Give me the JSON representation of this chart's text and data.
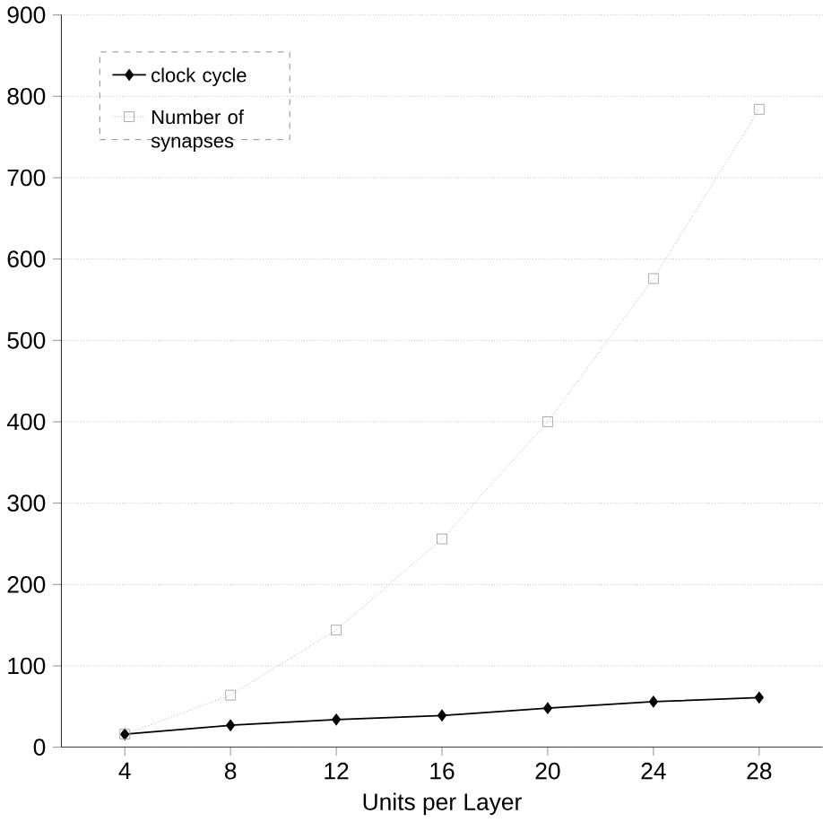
{
  "chart_data": {
    "type": "line",
    "xlabel": "Units per Layer",
    "categories": [
      "4",
      "8",
      "12",
      "16",
      "20",
      "24",
      "28"
    ],
    "series": [
      {
        "name": "clock cycle",
        "color": "#000000",
        "marker": "diamond",
        "line_style": "solid",
        "values": [
          16,
          27,
          34,
          39,
          48,
          56,
          61
        ]
      },
      {
        "name": "Number of synapses",
        "color": "#a0a0a0",
        "marker": "square",
        "line_style": "dotted",
        "values": [
          16,
          64,
          144,
          256,
          400,
          576,
          784
        ]
      }
    ],
    "ylim": [
      0,
      900
    ],
    "yticks": [
      0,
      100,
      200,
      300,
      400,
      500,
      600,
      700,
      800,
      900
    ],
    "grid": "y",
    "legend": "top left"
  }
}
